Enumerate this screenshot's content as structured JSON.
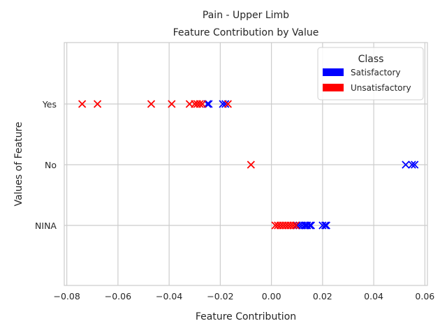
{
  "chart_data": {
    "type": "scatter",
    "title": "Pain - Upper Limb",
    "subtitle": "Feature Contribution by Value",
    "xlabel": "Feature Contribution",
    "ylabel": "Values of Feature",
    "xlim": [
      -0.081,
      0.061
    ],
    "x_ticks": [
      -0.08,
      -0.06,
      -0.04,
      -0.02,
      0.0,
      0.02,
      0.04,
      0.06
    ],
    "x_tick_labels": [
      "−0.08",
      "−0.06",
      "−0.04",
      "−0.02",
      "0.00",
      "0.02",
      "0.04",
      "0.06"
    ],
    "categories": [
      "Yes",
      "No",
      "NINA"
    ],
    "grid": true,
    "marker": "x",
    "legend": {
      "title": "Class",
      "placement": "top-right",
      "entries": [
        {
          "name": "Satisfactory",
          "color": "#0000ff"
        },
        {
          "name": "Unsatisfactory",
          "color": "#ff0000"
        }
      ]
    },
    "series": [
      {
        "name": "Satisfactory",
        "color": "#0000ff",
        "points": [
          {
            "category": "Yes",
            "x": -0.025
          },
          {
            "category": "Yes",
            "x": -0.0245
          },
          {
            "category": "Yes",
            "x": -0.019
          },
          {
            "category": "Yes",
            "x": -0.018
          },
          {
            "category": "No",
            "x": 0.0525
          },
          {
            "category": "No",
            "x": 0.055
          },
          {
            "category": "No",
            "x": 0.056
          },
          {
            "category": "NINA",
            "x": 0.01
          },
          {
            "category": "NINA",
            "x": 0.011
          },
          {
            "category": "NINA",
            "x": 0.012
          },
          {
            "category": "NINA",
            "x": 0.013
          },
          {
            "category": "NINA",
            "x": 0.0135
          },
          {
            "category": "NINA",
            "x": 0.014
          },
          {
            "category": "NINA",
            "x": 0.015
          },
          {
            "category": "NINA",
            "x": 0.0155
          },
          {
            "category": "NINA",
            "x": 0.02
          },
          {
            "category": "NINA",
            "x": 0.021
          },
          {
            "category": "NINA",
            "x": 0.0215
          }
        ]
      },
      {
        "name": "Unsatisfactory",
        "color": "#ff0000",
        "points": [
          {
            "category": "Yes",
            "x": -0.074
          },
          {
            "category": "Yes",
            "x": -0.068
          },
          {
            "category": "Yes",
            "x": -0.047
          },
          {
            "category": "Yes",
            "x": -0.039
          },
          {
            "category": "Yes",
            "x": -0.032
          },
          {
            "category": "Yes",
            "x": -0.03
          },
          {
            "category": "Yes",
            "x": -0.029
          },
          {
            "category": "Yes",
            "x": -0.028
          },
          {
            "category": "Yes",
            "x": -0.027
          },
          {
            "category": "Yes",
            "x": -0.017
          },
          {
            "category": "No",
            "x": -0.008
          },
          {
            "category": "NINA",
            "x": 0.0015
          },
          {
            "category": "NINA",
            "x": 0.0025
          },
          {
            "category": "NINA",
            "x": 0.0035
          },
          {
            "category": "NINA",
            "x": 0.0045
          },
          {
            "category": "NINA",
            "x": 0.0055
          },
          {
            "category": "NINA",
            "x": 0.0065
          },
          {
            "category": "NINA",
            "x": 0.0075
          },
          {
            "category": "NINA",
            "x": 0.0085
          },
          {
            "category": "NINA",
            "x": 0.0095
          }
        ]
      }
    ]
  }
}
